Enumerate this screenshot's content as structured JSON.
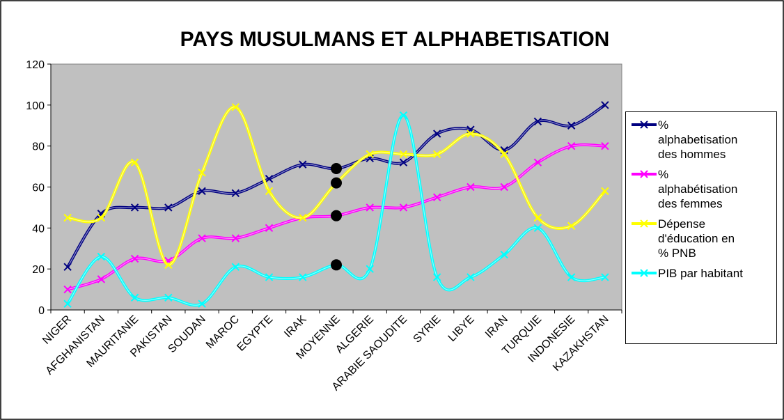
{
  "chart_data": {
    "type": "line",
    "title": "PAYS MUSULMANS ET ALPHABETISATION",
    "categories": [
      "NIGER",
      "AFGHANISTAN",
      "MAURITANIE",
      "PAKISTAN",
      "SOUDAN",
      "MAROC",
      "EGYPTE",
      "IRAK",
      "MOYENNE",
      "ALGERIE",
      "ARABIE SAOUDITE",
      "SYRIE",
      "LIBYE",
      "IRAN",
      "TURQUIE",
      "INDONESIE",
      "KAZAKHSTAN"
    ],
    "series": [
      {
        "name": "% alphabetisation des hommes",
        "color": "#000080",
        "values": [
          21,
          47,
          50,
          50,
          58,
          57,
          64,
          71,
          69,
          74,
          72,
          86,
          88,
          78,
          92,
          90,
          100
        ]
      },
      {
        "name": "% alphabétisation des femmes",
        "color": "#ff00ff",
        "values": [
          10,
          15,
          25,
          24,
          35,
          35,
          40,
          45,
          46,
          50,
          50,
          55,
          60,
          60,
          72,
          80,
          80
        ]
      },
      {
        "name": "Dépense d'éducation en % PNB",
        "color": "#ffff00",
        "values": [
          45,
          45,
          72,
          22,
          67,
          99,
          58,
          45,
          62,
          76,
          76,
          76,
          86,
          76,
          45,
          41,
          58
        ]
      },
      {
        "name": "PIB par habitant",
        "color": "#00ffff",
        "values": [
          3,
          26,
          6,
          6,
          3,
          21,
          16,
          16,
          22,
          20,
          95,
          16,
          16,
          27,
          40,
          16,
          16
        ]
      }
    ],
    "ylim": [
      0,
      120
    ],
    "yticks": [
      0,
      20,
      40,
      60,
      80,
      100,
      120
    ],
    "smooth": true,
    "plot_background": "#c0c0c0",
    "highlight_category": "MOYENNE",
    "highlight_color": "#000000",
    "legend": "right"
  }
}
